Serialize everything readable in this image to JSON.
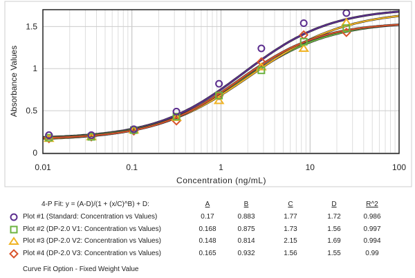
{
  "chart_data": {
    "type": "scatter",
    "title": "",
    "xlabel": "Concentration (ng/mL)",
    "ylabel": "Absorbance Values",
    "xscale": "log",
    "xlim": [
      0.01,
      100
    ],
    "ylim": [
      0,
      1.7
    ],
    "xticks": [
      "0.01",
      "0.1",
      "1",
      "10",
      "100"
    ],
    "yticks": [
      "0",
      "0.5",
      "1",
      "1.5"
    ],
    "grid": true,
    "x": [
      0.0117,
      0.035,
      0.105,
      0.316,
      0.95,
      2.84,
      8.5,
      25.6
    ],
    "series": [
      {
        "name": "Plot #1 (Standard: Concentration vs Values)",
        "marker": "circle",
        "color": "#5b2d8e",
        "values": [
          0.21,
          0.21,
          0.28,
          0.49,
          0.82,
          1.24,
          1.54,
          1.66
        ],
        "fit": {
          "A": "0.17",
          "B": "0.883",
          "C": "1.77",
          "D": "1.72",
          "R2": "0.986"
        }
      },
      {
        "name": "Plot #2 (DP-2.0 V1: Concentration vs Values)",
        "marker": "square",
        "color": "#6cb33f",
        "values": [
          0.18,
          0.19,
          0.27,
          0.43,
          0.68,
          0.98,
          1.32,
          1.48
        ],
        "fit": {
          "A": "0.168",
          "B": "0.875",
          "C": "1.73",
          "D": "1.56",
          "R2": "0.997"
        }
      },
      {
        "name": "Plot #3 (DP-2.0 V2: Concentration vs Values)",
        "marker": "triangle",
        "color": "#f0b323",
        "values": [
          0.17,
          0.19,
          0.27,
          0.42,
          0.62,
          1.02,
          1.24,
          1.55
        ],
        "fit": {
          "A": "0.148",
          "B": "0.814",
          "C": "2.15",
          "D": "1.69",
          "R2": "0.994"
        }
      },
      {
        "name": "Plot #4 (DP-2.0 V3: Concentration vs Values)",
        "marker": "diamond",
        "color": "#d9532b",
        "values": [
          0.17,
          0.19,
          0.26,
          0.38,
          0.68,
          1.08,
          1.4,
          1.43
        ],
        "fit": {
          "A": "0.165",
          "B": "0.932",
          "C": "1.56",
          "D": "1.55",
          "R2": "0.99"
        }
      }
    ]
  },
  "legend": {
    "formula": "4-P Fit: y = (A-D)/(1 + (x/C)^B) + D:",
    "headers": [
      "A",
      "B",
      "C",
      "D",
      "R^2"
    ],
    "footer": "Curve Fit Option - Fixed Weight Value"
  }
}
